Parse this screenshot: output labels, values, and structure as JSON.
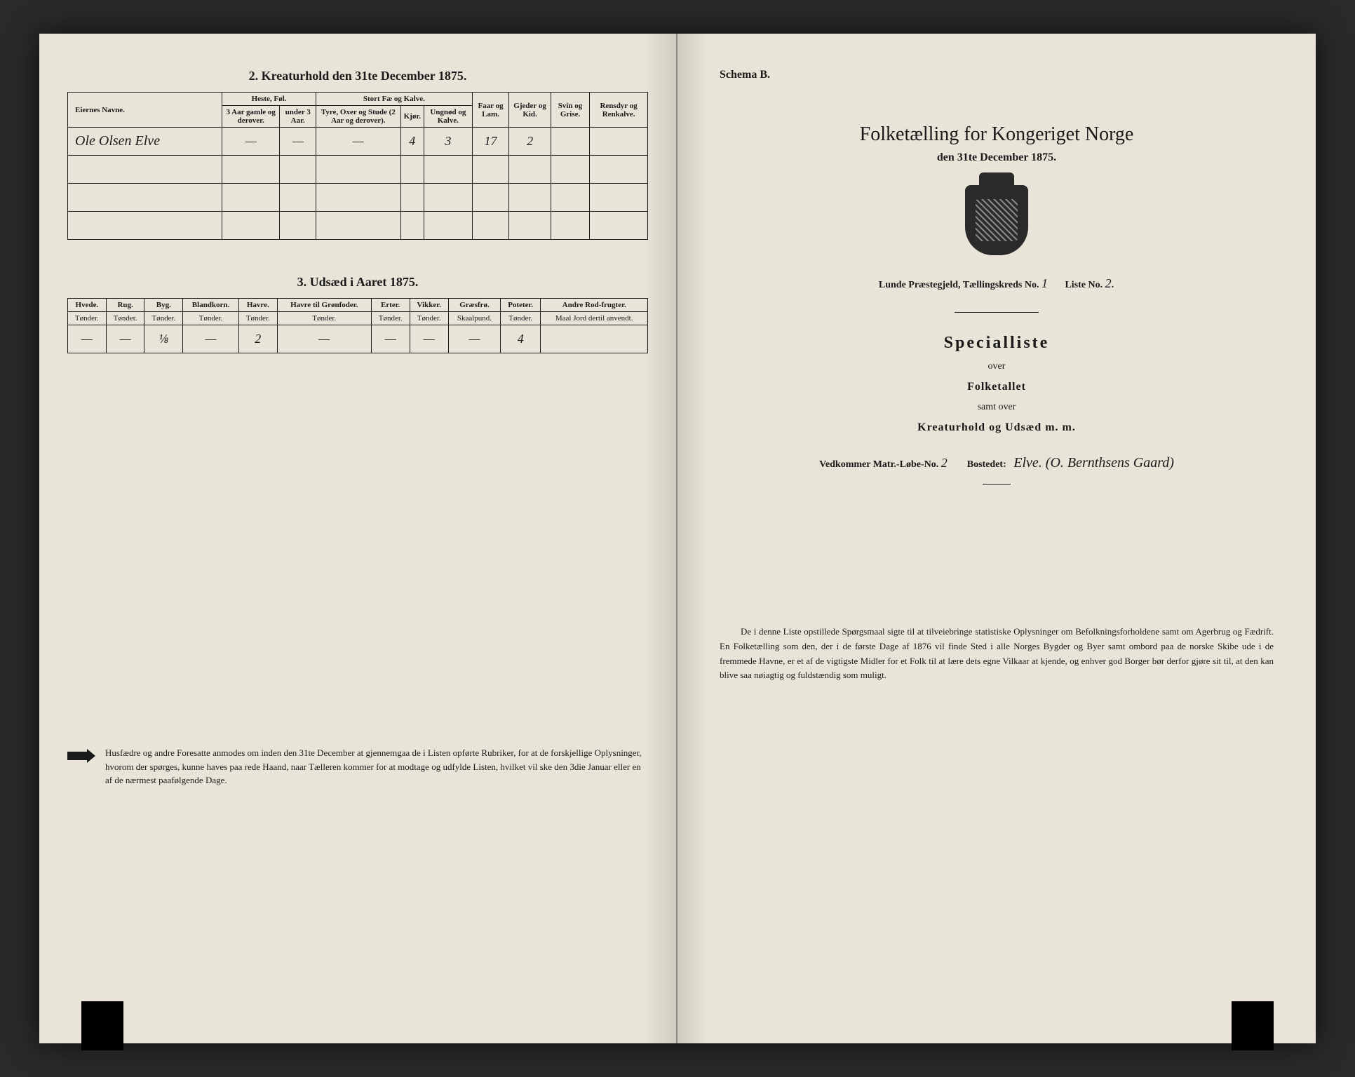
{
  "left": {
    "section2": {
      "title": "2. Kreaturhold den 31te December 1875.",
      "headers": {
        "name": "Eiernes Navne.",
        "heste": "Heste, Føl.",
        "heste_a": "3 Aar gamle og derover.",
        "heste_b": "under 3 Aar.",
        "stort": "Stort Fæ og Kalve.",
        "stort_a": "Tyre, Oxer og Stude (2 Aar og derover).",
        "stort_b": "Kjør.",
        "stort_c": "Ungnød og Kalve.",
        "faar": "Faar og Lam.",
        "gjeder": "Gjeder og Kid.",
        "svin": "Svin og Grise.",
        "ren": "Rensdyr og Renkalve."
      },
      "row": {
        "name": "Ole Olsen Elve",
        "heste_a": "—",
        "heste_b": "—",
        "stort_a": "—",
        "stort_b": "4",
        "stort_c": "3",
        "faar": "17",
        "gjeder": "2",
        "svin": "",
        "ren": ""
      }
    },
    "section3": {
      "title": "3. Udsæd i Aaret 1875.",
      "headers": {
        "hvede": "Hvede.",
        "rug": "Rug.",
        "byg": "Byg.",
        "bland": "Blandkorn.",
        "havre": "Havre.",
        "havre_gron": "Havre til Grønfoder.",
        "erter": "Erter.",
        "vikker": "Vikker.",
        "graes": "Græsfrø.",
        "poteter": "Poteter.",
        "andre": "Andre Rod-frugter."
      },
      "unit": "Tønder.",
      "unit_skaal": "Skaalpund.",
      "unit_andre": "Maal Jord dertil anvendt.",
      "row": {
        "hvede": "—",
        "rug": "—",
        "byg": "⅛",
        "bland": "—",
        "havre": "2",
        "havre_gron": "—",
        "erter": "—",
        "vikker": "—",
        "graes": "—",
        "poteter": "4",
        "andre": ""
      }
    },
    "notice": "Husfædre og andre Foresatte anmodes om inden den 31te December at gjennemgaa de i Listen opførte Rubriker, for at de forskjellige Oplysninger, hvorom der spørges, kunne haves paa rede Haand, naar Tælleren kommer for at modtage og udfylde Listen, hvilket vil ske den 3die Januar eller en af de nærmest paafølgende Dage."
  },
  "right": {
    "schema": "Schema B.",
    "title": "Folketælling for Kongeriget Norge",
    "subtitle": "den 31te December 1875.",
    "meta_prefix": "Lunde Præstegjeld, Tællingskreds No.",
    "meta_kreds": "1",
    "meta_liste_label": "Liste No.",
    "meta_liste": "2.",
    "special": "Specialliste",
    "over": "over",
    "folketallet": "Folketallet",
    "samt": "samt over",
    "kreatur": "Kreaturhold og Udsæd m. m.",
    "vedk_label": "Vedkommer Matr.-Løbe-No.",
    "vedk_no": "2",
    "bosted_label": "Bostedet:",
    "bosted": "Elve. (O. Bernthsens Gaard)",
    "bottom": "De i denne Liste opstillede Spørgsmaal sigte til at tilveiebringe statistiske Oplysninger om Befolkningsforholdene samt om Agerbrug og Fædrift. En Folketælling som den, der i de første Dage af 1876 vil finde Sted i alle Norges Bygder og Byer samt ombord paa de norske Skibe ude i de fremmede Havne, er et af de vigtigste Midler for et Folk til at lære dets egne Vilkaar at kjende, og enhver god Borger bør derfor gjøre sit til, at den kan blive saa nøiagtig og fuldstændig som muligt."
  },
  "colors": {
    "paper": "#e8e4d8",
    "ink": "#1a1a1a",
    "bg": "#2a2a2a"
  }
}
